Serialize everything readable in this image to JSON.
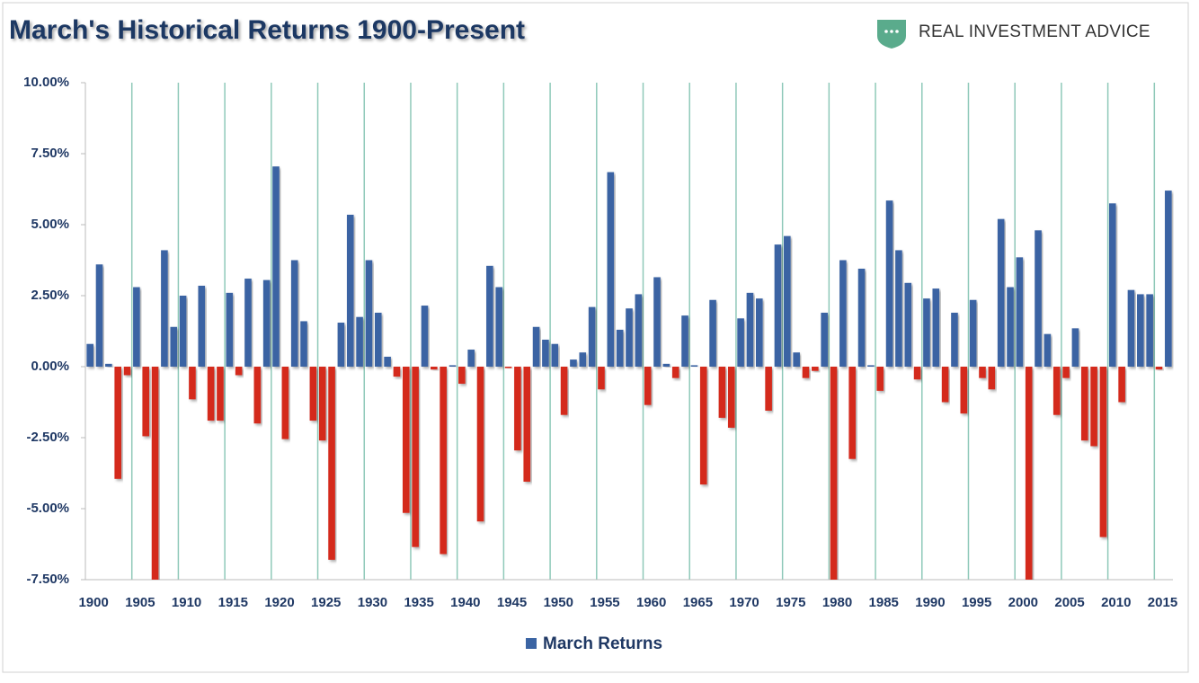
{
  "chart_data": {
    "type": "bar",
    "title": "March's Historical Returns 1900-Present",
    "logo_text": "REAL INVESTMENT ADVICE",
    "categories": [
      "1900",
      null,
      null,
      null,
      null,
      "1905",
      null,
      null,
      null,
      null,
      "1910",
      null,
      null,
      null,
      null,
      "1915",
      null,
      null,
      null,
      null,
      "1920",
      null,
      null,
      null,
      null,
      "1925",
      null,
      null,
      null,
      null,
      "1930",
      null,
      null,
      null,
      null,
      "1935",
      null,
      null,
      null,
      null,
      "1940",
      null,
      null,
      null,
      null,
      "1945",
      null,
      null,
      null,
      null,
      "1950",
      null,
      null,
      null,
      null,
      "1955",
      null,
      null,
      null,
      null,
      "1960",
      null,
      null,
      null,
      null,
      "1965",
      null,
      null,
      null,
      null,
      "1970",
      null,
      null,
      null,
      null,
      "1975",
      null,
      null,
      null,
      null,
      "1980",
      null,
      null,
      null,
      null,
      "1985",
      null,
      null,
      null,
      null,
      "1990",
      null,
      null,
      null,
      null,
      "1995",
      null,
      null,
      null,
      null,
      "2000",
      null,
      null,
      null,
      null,
      "2005",
      null,
      null,
      null,
      null,
      "2010",
      null,
      null,
      null,
      null,
      "2015",
      null
    ],
    "series": [
      {
        "name": "March Returns",
        "color": "#3b64a3",
        "negative_color": "#d42b1e",
        "values": [
          0.8,
          3.6,
          0.1,
          -3.95,
          -0.3,
          2.8,
          -2.45,
          -7.9,
          4.1,
          1.4,
          2.5,
          -1.15,
          2.85,
          -1.9,
          -1.9,
          2.6,
          -0.3,
          3.1,
          -2.0,
          3.05,
          7.05,
          -2.55,
          3.75,
          1.6,
          -1.9,
          -2.6,
          -6.8,
          1.55,
          5.35,
          1.75,
          3.75,
          1.9,
          0.35,
          -0.35,
          -5.15,
          -6.35,
          2.15,
          -0.1,
          -6.6,
          0.05,
          -0.6,
          0.6,
          -5.45,
          3.55,
          2.8,
          -0.05,
          -2.95,
          -4.05,
          1.4,
          0.95,
          0.8,
          -1.7,
          0.25,
          0.5,
          2.1,
          -0.8,
          6.85,
          1.3,
          2.05,
          2.55,
          -1.35,
          3.15,
          0.1,
          -0.4,
          1.8,
          0.05,
          -4.15,
          2.35,
          -1.8,
          -2.15,
          1.7,
          2.6,
          2.4,
          -1.55,
          4.3,
          4.6,
          0.5,
          -0.4,
          -0.15,
          1.9,
          -7.8,
          3.75,
          -3.25,
          3.45,
          0.05,
          -0.85,
          5.85,
          4.1,
          2.95,
          -0.45,
          2.4,
          2.75,
          -1.25,
          1.9,
          -1.65,
          2.35,
          -0.4,
          -0.8,
          5.2,
          2.8,
          3.85,
          -7.7,
          4.8,
          1.15,
          -1.7,
          -0.4,
          1.35,
          -2.6,
          -2.8,
          -6.0,
          5.75,
          -1.25,
          2.7,
          2.55,
          2.55,
          -0.1,
          6.2
        ]
      }
    ],
    "ylim": [
      -7.5,
      10
    ],
    "yticks": [
      {
        "value": 10,
        "label": "10.00%"
      },
      {
        "value": 7.5,
        "label": "7.50%"
      },
      {
        "value": 5,
        "label": "5.00%"
      },
      {
        "value": 2.5,
        "label": "2.50%"
      },
      {
        "value": 0,
        "label": "0.00%"
      },
      {
        "value": -2.5,
        "label": "-2.50%"
      },
      {
        "value": -5,
        "label": "-5.00%"
      },
      {
        "value": -7.5,
        "label": "-7.50%"
      }
    ],
    "grid": true,
    "grid_color": "#8fc9b9",
    "legend": "bottom"
  }
}
